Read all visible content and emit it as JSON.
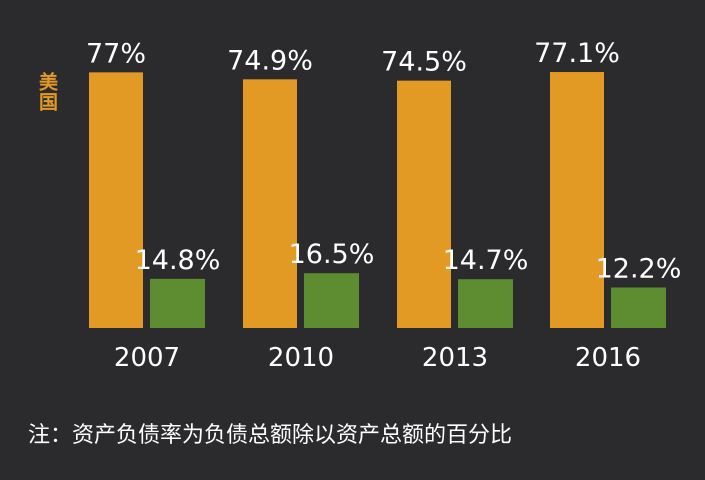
{
  "chart_data": {
    "type": "bar",
    "title": "",
    "xlabel": "",
    "ylabel": "",
    "ylim": [
      0,
      80
    ],
    "grid": false,
    "legend": "none",
    "categories": [
      "2007",
      "2010",
      "2013",
      "2016"
    ],
    "series": [
      {
        "name": "美国",
        "color": "#e39a25",
        "values": [
          77,
          74.9,
          74.5,
          77.1
        ],
        "labels": [
          "77%",
          "74.9%",
          "74.5%",
          "77.1%"
        ]
      },
      {
        "name": "",
        "color": "#5e8c31",
        "values": [
          14.8,
          16.5,
          14.7,
          12.2
        ],
        "labels": [
          "14.8%",
          "16.5%",
          "14.7%",
          "12.2%"
        ]
      }
    ]
  },
  "footnote": "注：资产负债率为负债总额除以资产总额的百分比"
}
